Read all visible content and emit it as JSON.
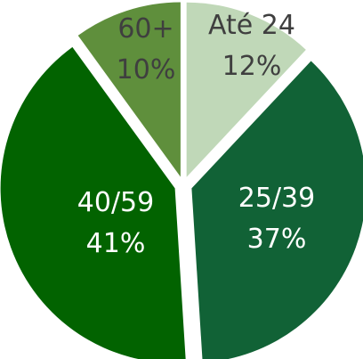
{
  "chart_data": {
    "type": "pie",
    "title": "",
    "slices": [
      {
        "category": "Até 24",
        "value": 12,
        "percent_label": "12%",
        "color": "#c0d8b8",
        "text_color": "#3f3f3f"
      },
      {
        "category": "25/39",
        "value": 37,
        "percent_label": "37%",
        "color": "#116236",
        "text_color": "#ffffff"
      },
      {
        "category": "40/59",
        "value": 41,
        "percent_label": "41%",
        "color": "#026300",
        "text_color": "#ffffff"
      },
      {
        "category": "60+",
        "value": 10,
        "percent_label": "10%",
        "color": "#5f8f3c",
        "text_color": "#3f3f3f"
      }
    ],
    "legend": "none"
  }
}
